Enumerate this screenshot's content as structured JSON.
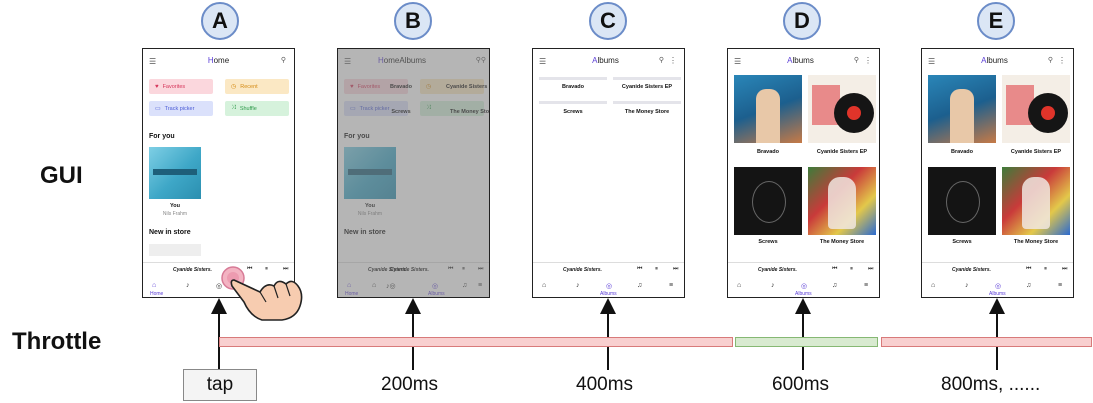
{
  "labels": {
    "gui": "GUI",
    "throttle": "Throttle"
  },
  "frames": [
    {
      "id": "A",
      "title_hl": "H",
      "title_rest": "ome"
    },
    {
      "id": "B",
      "title_hl": "H",
      "title_rest": "omeAlbums"
    },
    {
      "id": "C",
      "title_hl": "A",
      "title_rest": "lbums"
    },
    {
      "id": "D",
      "title_hl": "A",
      "title_rest": "lbums"
    },
    {
      "id": "E",
      "title_hl": "A",
      "title_rest": "lbums"
    }
  ],
  "home": {
    "chips": [
      "Favorites",
      "Recent",
      "Track picker",
      "Shuffle"
    ],
    "for_you": "For you",
    "album_title": "You",
    "album_artist": "Nils Frahm",
    "new_in_store": "New in store",
    "nav_home": "Home"
  },
  "albums": {
    "items": [
      "Bravado",
      "Cyanide Sisters EP",
      "Screws",
      "The Money Store"
    ],
    "nav_label": "Albums"
  },
  "player": {
    "song": "Cyanide Sisters."
  },
  "times": {
    "tap": "tap",
    "t200": "200ms",
    "t400": "400ms",
    "t600": "600ms",
    "t800": "800ms, ......"
  },
  "colors": {
    "accent": "#5a3cd6",
    "throttle_blocked": "#f8cfcf",
    "throttle_open": "#d8ead0"
  }
}
